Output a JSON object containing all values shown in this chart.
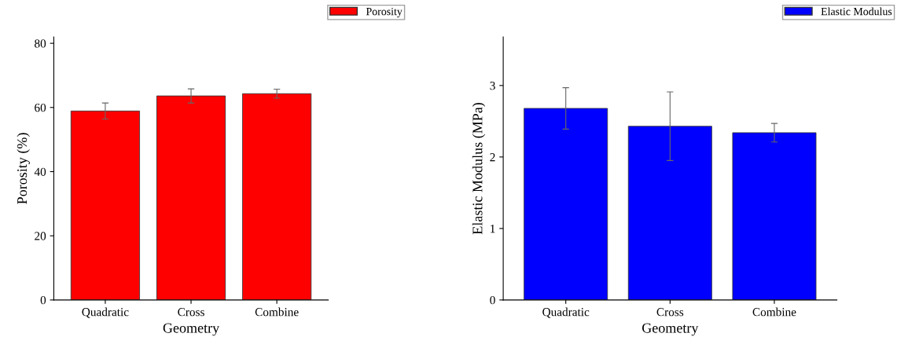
{
  "chart_data": [
    {
      "type": "bar",
      "categories": [
        "Quadratic",
        "Cross",
        "Combine"
      ],
      "xlabel": "Geometry",
      "ylabel": "Porosity (%)",
      "ylim": [
        0,
        82
      ],
      "yticks": [
        0,
        20,
        40,
        60,
        80
      ],
      "legend": "top right",
      "grid": false,
      "series": [
        {
          "name": "Porosity",
          "color": "#ff0000",
          "values": [
            58.9,
            63.6,
            64.3
          ],
          "errors": [
            2.5,
            2.2,
            1.4
          ]
        }
      ]
    },
    {
      "type": "bar",
      "categories": [
        "Quadratic",
        "Cross",
        "Combine"
      ],
      "xlabel": "Geometry",
      "ylabel": "Elastic Modulus (MPa)",
      "ylim": [
        0,
        3.68
      ],
      "yticks": [
        0,
        1,
        2,
        3
      ],
      "legend": "top right",
      "grid": false,
      "series": [
        {
          "name": "Elastic Modulus",
          "color": "#0000ff",
          "values": [
            2.68,
            2.43,
            2.34
          ],
          "errors": [
            0.29,
            0.48,
            0.13
          ]
        }
      ]
    }
  ]
}
